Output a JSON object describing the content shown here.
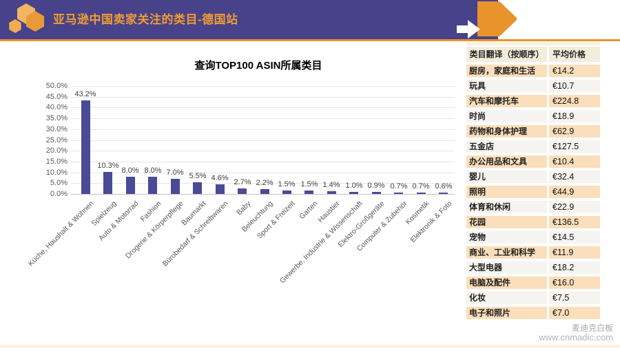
{
  "header": {
    "title": "亚马逊中国卖家关注的类目-德国站"
  },
  "colors": {
    "header_purple": "#474289",
    "accent_orange": "#E8932C",
    "title_orange": "#F09C33",
    "bar_blue": "#4A4A96",
    "table_row_odd": "#FBDEBB",
    "table_row_even": "#F6F4F0",
    "table_header_bg": "#F5EDDC"
  },
  "chart_data": {
    "type": "bar",
    "title": "查询TOP100 ASIN所属类目",
    "categories": [
      "Küche, Haushalt & Wohnen",
      "Spielzeug",
      "Auto & Motorrad",
      "Fashion",
      "Drogerie & Körperpflege",
      "Baumarkt",
      "Bürobedarf & Schreibwaren",
      "Baby",
      "Beleuchtung",
      "Sport & Freizeit",
      "Garten",
      "Haustier",
      "Gewerbe, Industrie & Wissenschaft",
      "Elektro-Großgeräte",
      "Computer & Zubehör",
      "Kosmetik",
      "Elektronik & Foto"
    ],
    "values": [
      43.2,
      10.3,
      8.0,
      8.0,
      7.0,
      5.5,
      4.6,
      2.7,
      2.2,
      1.5,
      1.5,
      1.4,
      1.0,
      0.9,
      0.7,
      0.7,
      0.6
    ],
    "value_labels": [
      "43.2%",
      "10.3%",
      "8.0%",
      "8.0%",
      "7.0%",
      "5.5%",
      "4.6%",
      "2.7%",
      "2.2%",
      "1.5%",
      "1.5%",
      "1.4%",
      "1.0%",
      "0.9%",
      "0.7%",
      "0.7%",
      "0.6%"
    ],
    "xlabel": "",
    "ylabel": "",
    "ylim": [
      0,
      50
    ],
    "ytick_step": 5,
    "ytick_labels": [
      "0.0%",
      "5.0%",
      "10.0%",
      "15.0%",
      "20.0%",
      "25.0%",
      "30.0%",
      "35.0%",
      "40.0%",
      "45.0%",
      "50.0%"
    ],
    "grid": true,
    "legend": false,
    "bar_color": "#4A4A96"
  },
  "table": {
    "headers": [
      "类目翻译（按顺序）",
      "平均价格"
    ],
    "rows": [
      [
        "厨房，家庭和生活",
        "€14.2"
      ],
      [
        "玩具",
        "€10.7"
      ],
      [
        "汽车和摩托车",
        "€224.8"
      ],
      [
        "时尚",
        "€18.9"
      ],
      [
        "药物和身体护理",
        "€62.9"
      ],
      [
        "五金店",
        "€127.5"
      ],
      [
        "办公用品和文具",
        "€10.4"
      ],
      [
        "婴儿",
        "€32.4"
      ],
      [
        "照明",
        "€44.9"
      ],
      [
        "体育和休闲",
        "€22.9"
      ],
      [
        "花园",
        "€136.5"
      ],
      [
        "宠物",
        "€14.5"
      ],
      [
        "商业、工业和科学",
        "€11.9"
      ],
      [
        "大型电器",
        "€18.2"
      ],
      [
        "电脑及配件",
        "€16.0"
      ],
      [
        "化妆",
        "€7.5"
      ],
      [
        "电子和照片",
        "€7.0"
      ]
    ]
  },
  "footer": {
    "brand": "麦迪克白板",
    "site": "www.cnmadic.com"
  }
}
